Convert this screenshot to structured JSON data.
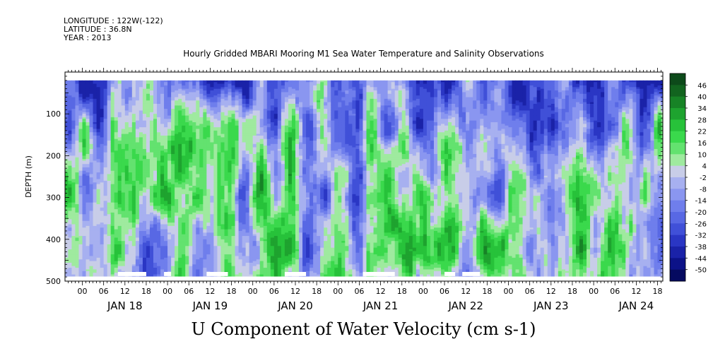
{
  "header": {
    "longitude": "LONGITUDE : 122W(-122)",
    "latitude": "LATITUDE : 36.8N",
    "year": "YEAR : 2013"
  },
  "chart_data": {
    "type": "heatmap",
    "title": "Hourly Gridded MBARI Mooring M1 Sea Water Temperature and Salinity Observations",
    "variable": "U Component of Water Velocity (cm s-1)",
    "ylabel": "DEPTH (m)",
    "ylim": [
      500,
      0
    ],
    "y_ticks": [
      "100",
      "200",
      "300",
      "400",
      "500"
    ],
    "x_hour_ticks": [
      "00",
      "06",
      "12",
      "18",
      "00",
      "06",
      "12",
      "18",
      "00",
      "06",
      "12",
      "18",
      "00",
      "06",
      "12",
      "18",
      "00",
      "06",
      "12",
      "18",
      "00",
      "06",
      "12",
      "18",
      "00",
      "06",
      "12",
      "18"
    ],
    "x_day_labels": [
      "JAN 18",
      "JAN 19",
      "JAN 20",
      "JAN 21",
      "JAN 22",
      "JAN 23",
      "JAN 24"
    ],
    "colorbar_levels": [
      "46",
      "40",
      "34",
      "28",
      "22",
      "16",
      "10",
      "4",
      "-2",
      "-8",
      "-14",
      "-20",
      "-26",
      "-32",
      "-38",
      "-44",
      "-50"
    ],
    "colorbar_colors": [
      "#0d4a1a",
      "#12641f",
      "#178326",
      "#1ea32f",
      "#27c23a",
      "#3ad94c",
      "#63e26f",
      "#9fea9f",
      "#c8cde8",
      "#a7b0f0",
      "#8a96f0",
      "#6f7eec",
      "#5868e4",
      "#4050d8",
      "#2a36c4",
      "#1a22a8",
      "#0c1288",
      "#050a60"
    ],
    "colorbar_min": -50,
    "colorbar_max": 52,
    "data_depth_range": [
      20,
      488
    ],
    "data_time_range": [
      "JAN 17 03:00",
      "JAN 24 21:00"
    ],
    "pattern_note_in_json_only_for_rendering": null
  }
}
